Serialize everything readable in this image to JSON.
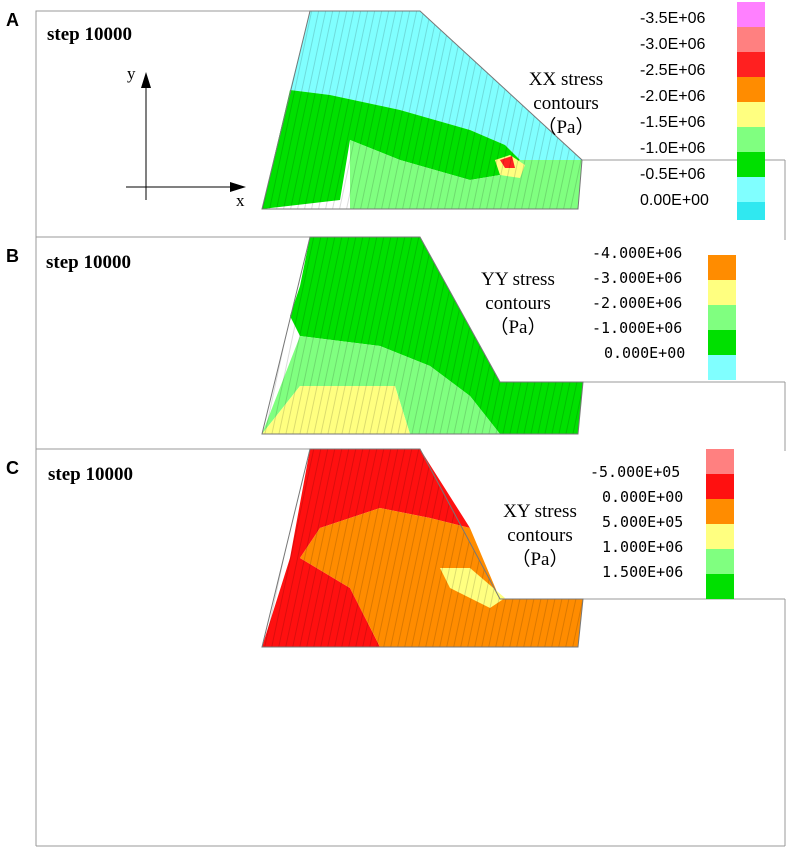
{
  "panels": [
    {
      "letter": "A",
      "step": "step 10000",
      "title_line1": "XX stress",
      "title_line2": "contours",
      "title_line3": "（Pa）",
      "axis_x": "x",
      "axis_y": "y",
      "legend": [
        {
          "label": "-3.5E+06",
          "color": "#ff80ff"
        },
        {
          "label": "-3.0E+06",
          "color": "#ff8080"
        },
        {
          "label": "-2.5E+06",
          "color": "#ff2020"
        },
        {
          "label": "-2.0E+06",
          "color": "#ff8c00"
        },
        {
          "label": "-1.5E+06",
          "color": "#ffff80"
        },
        {
          "label": "-1.0E+06",
          "color": "#80ff80"
        },
        {
          "label": "-0.5E+06",
          "color": "#00e000"
        },
        {
          "label": "0.00E+00",
          "color": "#80ffff"
        }
      ],
      "legend_last_color": "#30e8f0"
    },
    {
      "letter": "B",
      "step": "step 10000",
      "title_line1": "YY stress",
      "title_line2": "contours",
      "title_line3": "（Pa）",
      "legend": [
        {
          "label": "-4.000E+06",
          "color": "#ff8c00"
        },
        {
          "label": "-3.000E+06",
          "color": "#ffff80"
        },
        {
          "label": "-2.000E+06",
          "color": "#80ff80"
        },
        {
          "label": "-1.000E+06",
          "color": "#00e000"
        },
        {
          "label": "0.000E+00",
          "color": "#80ffff"
        }
      ]
    },
    {
      "letter": "C",
      "step": "step 10000",
      "title_line1": "XY stress",
      "title_line2": "contours",
      "title_line3": "（Pa）",
      "legend": [
        {
          "label": "-5.000E+05",
          "color": "#ff8080"
        },
        {
          "label": "0.000E+00",
          "color": "#ff1010"
        },
        {
          "label": "5.000E+05",
          "color": "#ff8c00"
        },
        {
          "label": "1.000E+06",
          "color": "#ffff80"
        },
        {
          "label": "1.500E+06",
          "color": "#80ff80"
        }
      ],
      "legend_last_color": "#00e000"
    }
  ]
}
